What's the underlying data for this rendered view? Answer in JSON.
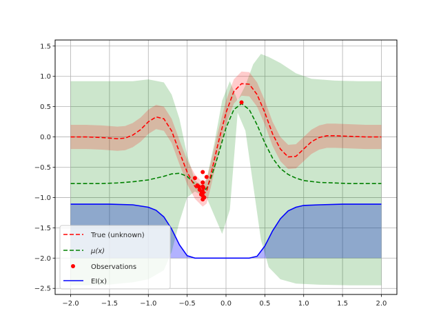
{
  "chart_data": {
    "type": "line",
    "xlim": [
      -2.2,
      2.2
    ],
    "ylim": [
      -2.6,
      1.6
    ],
    "x_ticks": [
      -2.0,
      -1.5,
      -1.0,
      -0.5,
      0.0,
      0.5,
      1.0,
      1.5,
      2.0
    ],
    "x_tick_labels": [
      "−2.0",
      "−1.5",
      "−1.0",
      "−0.5",
      "0.0",
      "0.5",
      "1.0",
      "1.5",
      "2.0"
    ],
    "y_ticks": [
      1.5,
      1.0,
      0.5,
      0.0,
      -0.5,
      -1.0,
      -1.5,
      -2.0,
      -2.5
    ],
    "y_tick_labels": [
      "1.5",
      "1.0",
      "0.5",
      "0.0",
      "−0.5",
      "−1.0",
      "−1.5",
      "−2.0",
      "−2.5"
    ],
    "grid": true,
    "legend_position": "lower-left",
    "series": [
      {
        "name": "True (unknown)",
        "style": "dashed",
        "color": "#ff0000",
        "band_color": "#ff0000",
        "points": [
          [
            -2.0,
            0.0
          ],
          [
            -1.8,
            0.0
          ],
          [
            -1.6,
            -0.01
          ],
          [
            -1.4,
            -0.03
          ],
          [
            -1.3,
            -0.02
          ],
          [
            -1.2,
            0.03
          ],
          [
            -1.1,
            0.12
          ],
          [
            -1.0,
            0.25
          ],
          [
            -0.9,
            0.33
          ],
          [
            -0.8,
            0.3
          ],
          [
            -0.7,
            0.1
          ],
          [
            -0.6,
            -0.25
          ],
          [
            -0.5,
            -0.58
          ],
          [
            -0.4,
            -0.82
          ],
          [
            -0.3,
            -0.95
          ],
          [
            -0.25,
            -0.9
          ],
          [
            -0.2,
            -0.65
          ],
          [
            -0.1,
            -0.1
          ],
          [
            0.0,
            0.4
          ],
          [
            0.1,
            0.75
          ],
          [
            0.2,
            0.88
          ],
          [
            0.3,
            0.87
          ],
          [
            0.4,
            0.7
          ],
          [
            0.5,
            0.4
          ],
          [
            0.6,
            0.05
          ],
          [
            0.7,
            -0.2
          ],
          [
            0.8,
            -0.33
          ],
          [
            0.9,
            -0.32
          ],
          [
            1.0,
            -0.2
          ],
          [
            1.1,
            -0.08
          ],
          [
            1.2,
            -0.01
          ],
          [
            1.3,
            0.02
          ],
          [
            1.4,
            0.02
          ],
          [
            1.6,
            0.01
          ],
          [
            1.8,
            0.0
          ],
          [
            2.0,
            0.0
          ]
        ],
        "band_halfwidth": 0.2
      },
      {
        "name": "μ(x)",
        "style": "dashed",
        "color": "#008000",
        "band_color": "#008000",
        "points": [
          [
            -2.0,
            -0.77
          ],
          [
            -1.6,
            -0.77
          ],
          [
            -1.4,
            -0.76
          ],
          [
            -1.2,
            -0.74
          ],
          [
            -1.0,
            -0.71
          ],
          [
            -0.8,
            -0.65
          ],
          [
            -0.7,
            -0.61
          ],
          [
            -0.6,
            -0.6
          ],
          [
            -0.5,
            -0.65
          ],
          [
            -0.4,
            -0.78
          ],
          [
            -0.33,
            -0.87
          ],
          [
            -0.3,
            -0.9
          ],
          [
            -0.25,
            -0.85
          ],
          [
            -0.2,
            -0.7
          ],
          [
            -0.1,
            -0.3
          ],
          [
            0.0,
            0.15
          ],
          [
            0.1,
            0.45
          ],
          [
            0.2,
            0.55
          ],
          [
            0.3,
            0.45
          ],
          [
            0.4,
            0.2
          ],
          [
            0.5,
            -0.1
          ],
          [
            0.6,
            -0.35
          ],
          [
            0.7,
            -0.52
          ],
          [
            0.8,
            -0.62
          ],
          [
            0.9,
            -0.68
          ],
          [
            1.0,
            -0.72
          ],
          [
            1.2,
            -0.75
          ],
          [
            1.4,
            -0.76
          ],
          [
            1.6,
            -0.77
          ],
          [
            2.0,
            -0.77
          ]
        ],
        "band_upper": [
          [
            -2.0,
            0.92
          ],
          [
            -1.6,
            0.92
          ],
          [
            -1.2,
            0.92
          ],
          [
            -1.0,
            0.95
          ],
          [
            -0.8,
            0.9
          ],
          [
            -0.7,
            0.7
          ],
          [
            -0.6,
            0.3
          ],
          [
            -0.5,
            -0.3
          ],
          [
            -0.4,
            -0.72
          ],
          [
            -0.33,
            -0.78
          ],
          [
            -0.3,
            -0.8
          ],
          [
            -0.25,
            -0.7
          ],
          [
            -0.15,
            -0.1
          ],
          [
            -0.05,
            0.6
          ],
          [
            0.05,
            0.92
          ],
          [
            0.15,
            0.6
          ],
          [
            0.25,
            0.85
          ],
          [
            0.35,
            1.2
          ],
          [
            0.45,
            1.37
          ],
          [
            0.55,
            1.32
          ],
          [
            0.7,
            1.22
          ],
          [
            0.9,
            1.05
          ],
          [
            1.1,
            0.96
          ],
          [
            1.4,
            0.93
          ],
          [
            1.7,
            0.92
          ],
          [
            2.0,
            0.92
          ]
        ],
        "band_lower": [
          [
            -2.0,
            -2.45
          ],
          [
            -1.6,
            -2.45
          ],
          [
            -1.2,
            -2.4
          ],
          [
            -1.0,
            -2.35
          ],
          [
            -0.8,
            -2.2
          ],
          [
            -0.7,
            -1.9
          ],
          [
            -0.6,
            -1.4
          ],
          [
            -0.5,
            -1.0
          ],
          [
            -0.4,
            -0.9
          ],
          [
            -0.33,
            -0.95
          ],
          [
            -0.3,
            -0.98
          ],
          [
            -0.25,
            -1.0
          ],
          [
            -0.15,
            -1.3
          ],
          [
            -0.05,
            -1.6
          ],
          [
            0.05,
            -1.2
          ],
          [
            0.15,
            0.4
          ],
          [
            0.25,
            0.1
          ],
          [
            0.35,
            -0.8
          ],
          [
            0.45,
            -1.7
          ],
          [
            0.55,
            -2.15
          ],
          [
            0.7,
            -2.35
          ],
          [
            0.9,
            -2.42
          ],
          [
            1.2,
            -2.44
          ],
          [
            1.6,
            -2.45
          ],
          [
            2.0,
            -2.45
          ]
        ]
      },
      {
        "name": "Observations",
        "style": "points",
        "color": "#ff0000",
        "points": [
          [
            -0.4,
            -0.68
          ],
          [
            -0.37,
            -0.8
          ],
          [
            -0.35,
            -0.82
          ],
          [
            -0.34,
            -0.87
          ],
          [
            -0.32,
            -0.95
          ],
          [
            -0.31,
            -0.92
          ],
          [
            -0.3,
            -0.58
          ],
          [
            -0.3,
            -0.75
          ],
          [
            -0.3,
            -0.82
          ],
          [
            -0.3,
            -0.9
          ],
          [
            -0.3,
            -0.97
          ],
          [
            -0.3,
            -1.03
          ],
          [
            -0.29,
            -0.84
          ],
          [
            -0.28,
            -1.0
          ],
          [
            -0.25,
            -0.66
          ],
          [
            0.2,
            0.57
          ]
        ]
      },
      {
        "name": "EI(x)",
        "style": "solid",
        "color": "#0000ff",
        "fill_color": "#0000ff",
        "fill_base": -2.0,
        "points": [
          [
            -2.0,
            -1.11
          ],
          [
            -1.5,
            -1.11
          ],
          [
            -1.2,
            -1.12
          ],
          [
            -1.0,
            -1.16
          ],
          [
            -0.9,
            -1.21
          ],
          [
            -0.8,
            -1.32
          ],
          [
            -0.7,
            -1.52
          ],
          [
            -0.6,
            -1.78
          ],
          [
            -0.5,
            -1.96
          ],
          [
            -0.4,
            -2.0
          ],
          [
            0.0,
            -2.0
          ],
          [
            0.3,
            -2.0
          ],
          [
            0.4,
            -1.97
          ],
          [
            0.5,
            -1.8
          ],
          [
            0.6,
            -1.55
          ],
          [
            0.7,
            -1.35
          ],
          [
            0.8,
            -1.22
          ],
          [
            0.9,
            -1.16
          ],
          [
            1.0,
            -1.13
          ],
          [
            1.2,
            -1.12
          ],
          [
            1.5,
            -1.11
          ],
          [
            2.0,
            -1.11
          ]
        ]
      }
    ]
  },
  "legend": {
    "true_label": "True (unknown)",
    "mu_label": "μ(x)",
    "obs_label": "Observations",
    "ei_label": "EI(x)"
  }
}
